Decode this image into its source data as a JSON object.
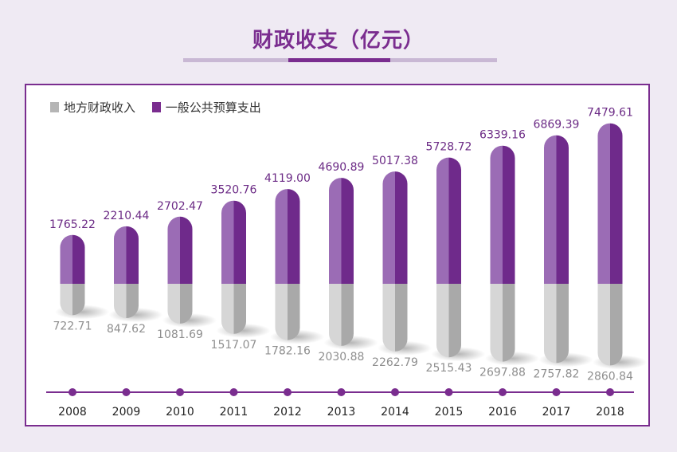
{
  "title": "财政收支（亿元）",
  "legend": {
    "series1": "地方财政收入",
    "series2": "一般公共预算支出"
  },
  "colors": {
    "purple": "#7a2d8f",
    "gray": "#b5b5b5",
    "background": "#efeaf3"
  },
  "chart_data": {
    "type": "bar",
    "title": "财政收支（亿元）",
    "categories": [
      "2008",
      "2009",
      "2010",
      "2011",
      "2012",
      "2013",
      "2014",
      "2015",
      "2016",
      "2017",
      "2018"
    ],
    "series": [
      {
        "name": "地方财政收入",
        "values": [
          722.71,
          847.62,
          1081.69,
          1517.07,
          1782.16,
          2030.88,
          2262.79,
          2515.43,
          2697.88,
          2757.82,
          2860.84
        ]
      },
      {
        "name": "一般公共预算支出",
        "values": [
          1765.22,
          2210.44,
          2702.47,
          3520.76,
          4119.0,
          4690.89,
          5017.38,
          5728.72,
          6339.16,
          6869.39,
          7479.61
        ]
      }
    ],
    "value_labels": {
      "地方财政收入": [
        "722.71",
        "847.62",
        "1081.69",
        "1517.07",
        "1782.16",
        "2030.88",
        "2262.79",
        "2515.43",
        "2697.88",
        "2757.82",
        "2860.84"
      ],
      "一般公共预算支出": [
        "1765.22",
        "2210.44",
        "2702.47",
        "3520.76",
        "4119.00",
        "4690.89",
        "5017.38",
        "5728.72",
        "6339.16",
        "6869.39",
        "7479.61"
      ]
    },
    "legend_position": "top-left",
    "grid": false
  }
}
